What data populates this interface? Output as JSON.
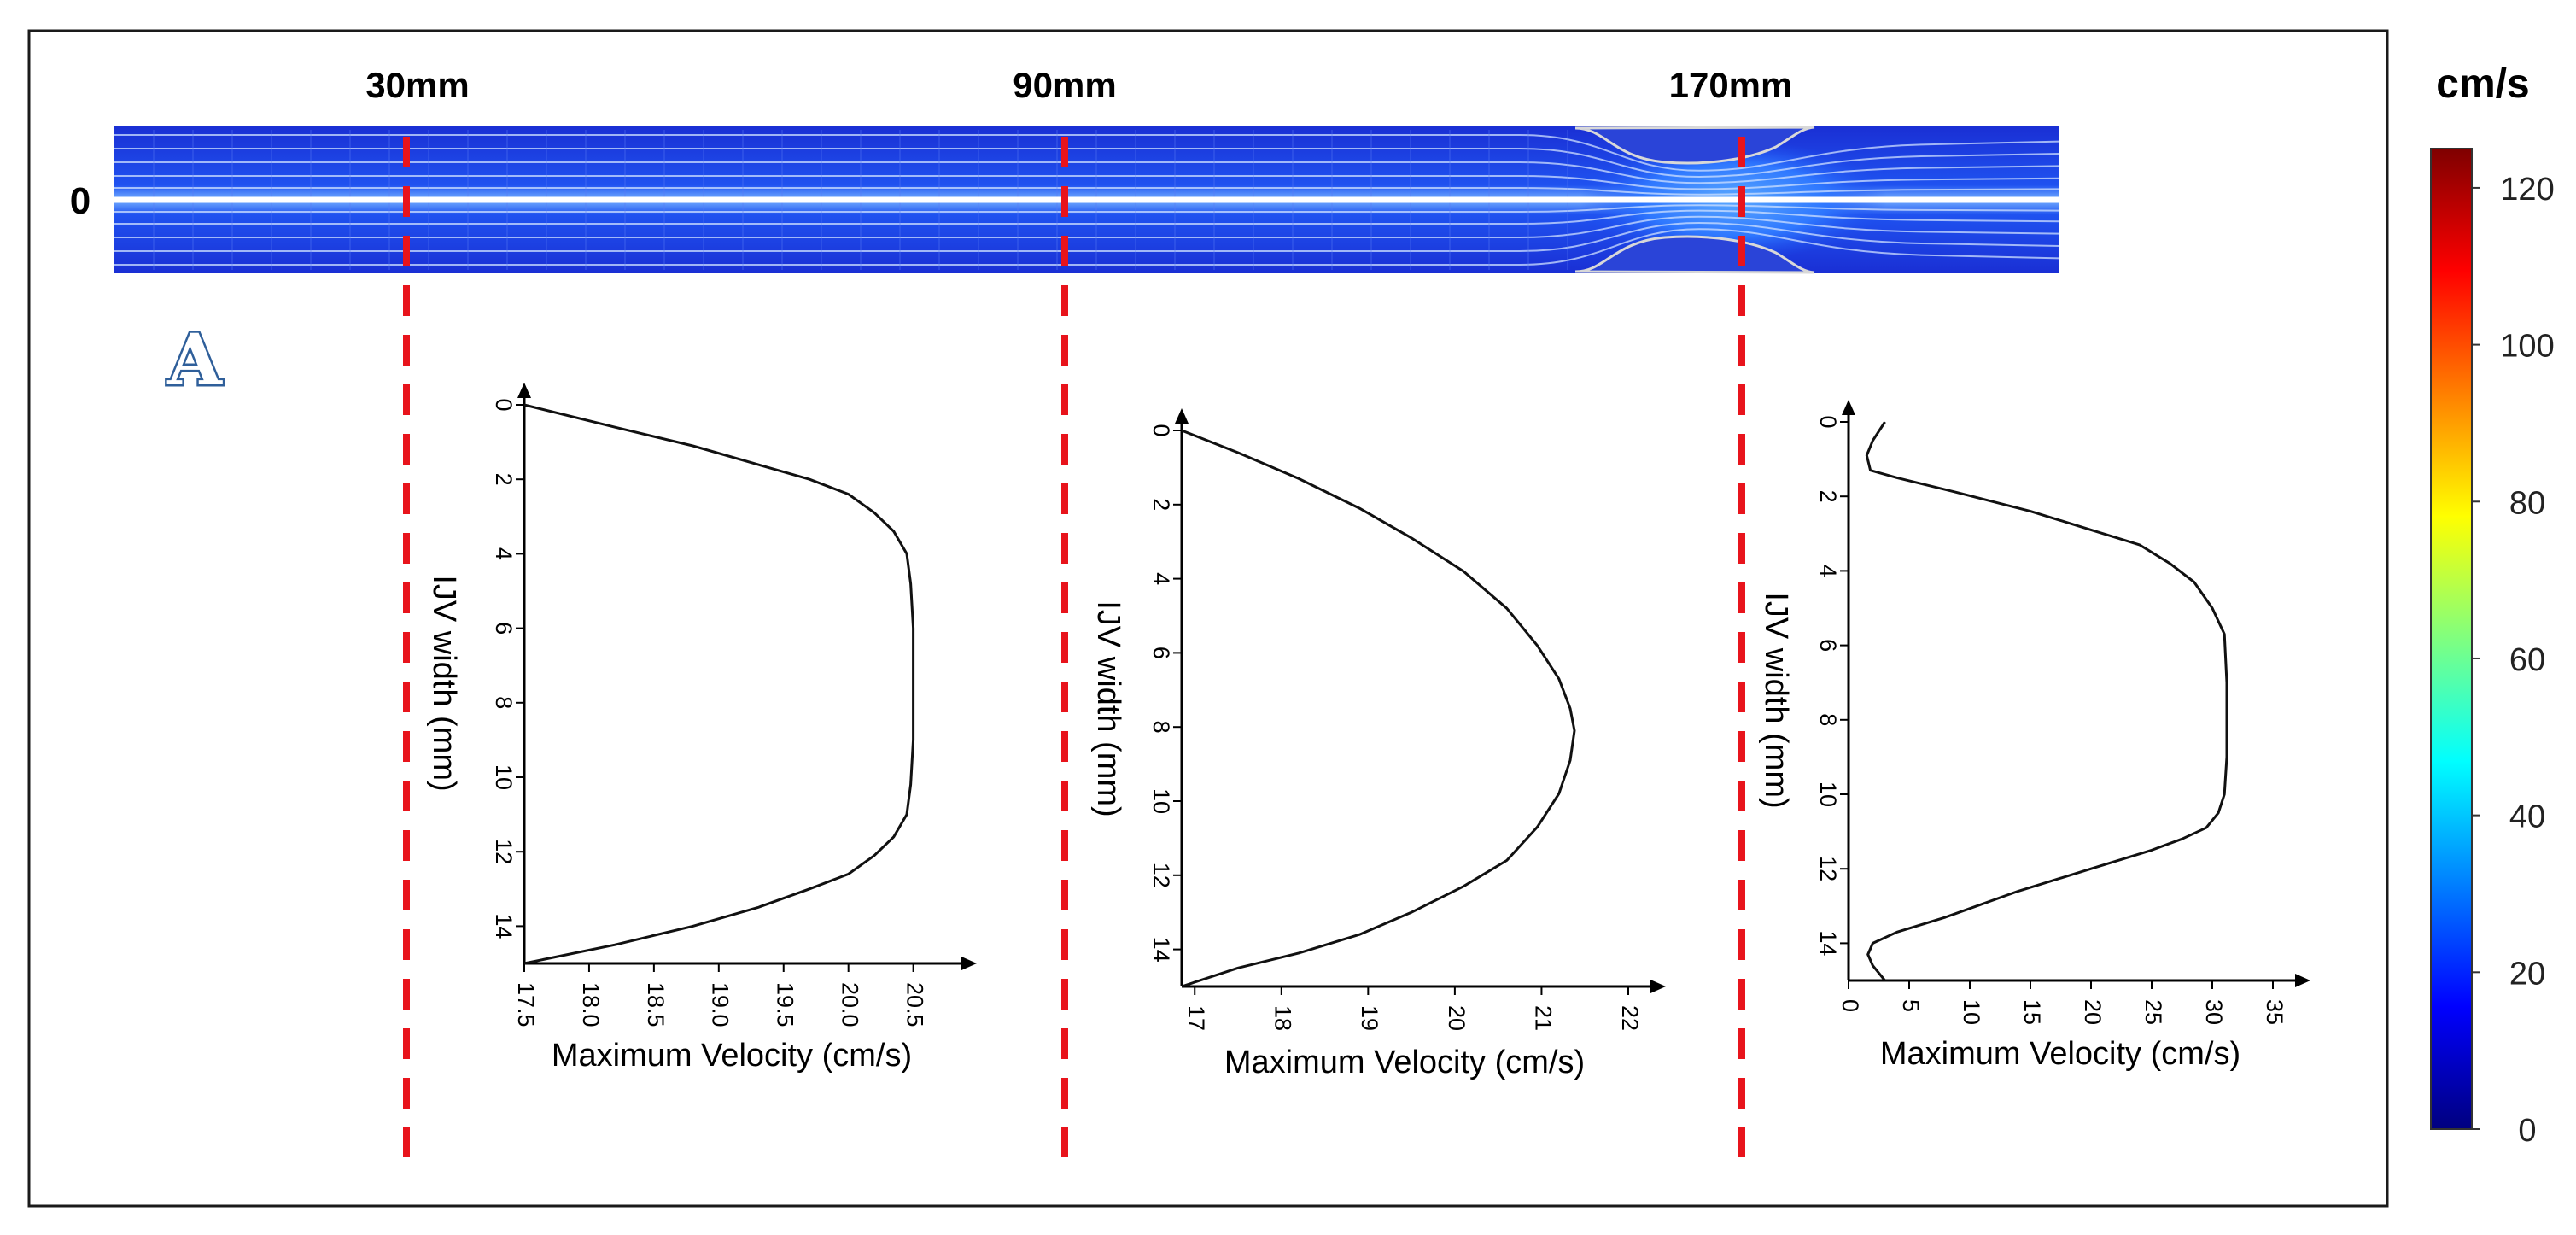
{
  "colors": {
    "dash_line": "#e8141c",
    "curve": "#111111",
    "panel_label": "#2f5f9a",
    "frame": "#1a1a1a"
  },
  "panel_label": "A",
  "velocity_map": {
    "y_label": "0",
    "positions": [
      {
        "label": "30mm"
      },
      {
        "label": "90mm"
      },
      {
        "label": "170mm"
      }
    ]
  },
  "colorbar": {
    "unit": "cm/s",
    "range": [
      0,
      125
    ],
    "ticks": [
      "0",
      "20",
      "40",
      "60",
      "80",
      "100",
      "120"
    ],
    "tick_values": [
      0,
      20,
      40,
      60,
      80,
      100,
      120
    ],
    "colormap": "jet"
  },
  "chart_data": [
    {
      "type": "line",
      "xlabel": "Maximum Velocity (cm/s)",
      "ylabel": "IJV width (mm)",
      "xlim": [
        17.5,
        20.7
      ],
      "ylim": [
        0,
        15
      ],
      "y_inverted": true,
      "x_ticks": [
        "17.5",
        "18.0",
        "18.5",
        "19.0",
        "19.5",
        "20.0",
        "20.5"
      ],
      "x_tick_values": [
        17.5,
        18.0,
        18.5,
        19.0,
        19.5,
        20.0,
        20.5
      ],
      "y_ticks": [
        "0",
        "2",
        "4",
        "6",
        "8",
        "10",
        "12",
        "14"
      ],
      "y_tick_values": [
        0,
        2,
        4,
        6,
        8,
        10,
        12,
        14
      ],
      "series": [
        {
          "x": [
            17.5,
            18.2,
            18.8,
            19.3,
            19.7,
            20.0,
            20.2,
            20.35,
            20.45,
            20.48,
            20.5,
            20.5,
            20.5,
            20.48,
            20.45,
            20.35,
            20.2,
            20.0,
            19.7,
            19.3,
            18.8,
            18.2,
            17.5
          ],
          "y": [
            0,
            0.6,
            1.1,
            1.6,
            2.0,
            2.4,
            2.9,
            3.4,
            4.0,
            4.8,
            6.0,
            7.5,
            9.0,
            10.2,
            11.0,
            11.6,
            12.1,
            12.6,
            13.0,
            13.5,
            14.0,
            14.5,
            15.0
          ]
        }
      ]
    },
    {
      "type": "line",
      "xlabel": "Maximum Velocity (cm/s)",
      "ylabel": "IJV width (mm)",
      "xlim": [
        16.85,
        22.0
      ],
      "ylim": [
        0,
        15
      ],
      "y_inverted": true,
      "x_ticks": [
        "17",
        "18",
        "19",
        "20",
        "21",
        "22"
      ],
      "x_tick_values": [
        17,
        18,
        19,
        20,
        21,
        22
      ],
      "y_ticks": [
        "0",
        "2",
        "4",
        "6",
        "8",
        "10",
        "12",
        "14"
      ],
      "y_tick_values": [
        0,
        2,
        4,
        6,
        8,
        10,
        12,
        14
      ],
      "series": [
        {
          "x": [
            16.85,
            17.5,
            18.2,
            18.9,
            19.5,
            20.1,
            20.6,
            20.95,
            21.2,
            21.33,
            21.38,
            21.33,
            21.2,
            20.95,
            20.6,
            20.1,
            19.5,
            18.9,
            18.2,
            17.5,
            16.85
          ],
          "y": [
            0,
            0.6,
            1.3,
            2.1,
            2.9,
            3.8,
            4.8,
            5.8,
            6.7,
            7.5,
            8.1,
            8.9,
            9.8,
            10.7,
            11.6,
            12.3,
            13.0,
            13.6,
            14.1,
            14.5,
            15.0
          ]
        }
      ]
    },
    {
      "type": "line",
      "xlabel": "Maximum Velocity (cm/s)",
      "ylabel": "IJV width (mm)",
      "xlim": [
        0,
        35
      ],
      "ylim": [
        0,
        15
      ],
      "y_inverted": true,
      "x_ticks": [
        "0",
        "5",
        "10",
        "15",
        "20",
        "25",
        "30",
        "35"
      ],
      "x_tick_values": [
        0,
        5,
        10,
        15,
        20,
        25,
        30,
        35
      ],
      "y_ticks": [
        "0",
        "2",
        "4",
        "6",
        "8",
        "10",
        "12",
        "14"
      ],
      "y_tick_values": [
        0,
        2,
        4,
        6,
        8,
        10,
        12,
        14
      ],
      "series": [
        {
          "x": [
            3.0,
            2.0,
            1.5,
            1.8,
            4.0,
            9.0,
            15.0,
            20.0,
            24.0,
            26.5,
            28.5,
            30.0,
            31.0,
            31.2,
            31.2,
            31.0,
            30.5,
            29.5,
            27.5,
            25.0,
            20.0,
            14.0,
            8.0,
            4.0,
            2.0,
            1.6,
            2.0,
            3.0
          ],
          "y": [
            0.0,
            0.5,
            0.9,
            1.3,
            1.5,
            1.9,
            2.4,
            2.9,
            3.3,
            3.8,
            4.3,
            5.0,
            5.7,
            7.0,
            9.0,
            10.0,
            10.5,
            10.9,
            11.2,
            11.5,
            12.0,
            12.6,
            13.3,
            13.7,
            14.0,
            14.3,
            14.6,
            15.0
          ]
        }
      ]
    }
  ]
}
